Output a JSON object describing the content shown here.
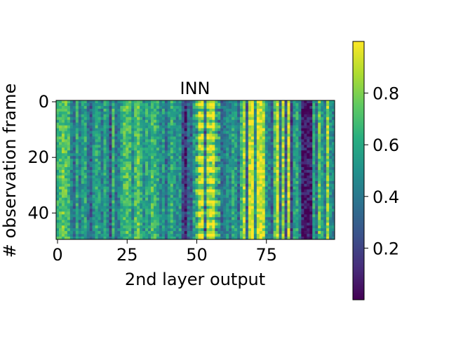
{
  "chart_data": {
    "type": "heatmap",
    "title": "INN",
    "xlabel": "2nd layer output",
    "ylabel": "# observation frame",
    "x_ticks": [
      0,
      25,
      50,
      75
    ],
    "y_ticks": [
      0,
      20,
      40
    ],
    "n_cols": 100,
    "n_rows": 50,
    "value_range": [
      0.0,
      1.0
    ],
    "colorbar": {
      "ticks": [
        0.2,
        0.4,
        0.6,
        0.8
      ],
      "tick_labels": [
        "0.2",
        "0.4",
        "0.6",
        "0.8"
      ]
    },
    "colormap": "viridis",
    "column_means": [
      0.62,
      0.7,
      0.76,
      0.72,
      0.66,
      0.45,
      0.35,
      0.6,
      0.4,
      0.55,
      0.6,
      0.38,
      0.3,
      0.5,
      0.62,
      0.55,
      0.42,
      0.6,
      0.5,
      0.25,
      0.65,
      0.35,
      0.45,
      0.6,
      0.7,
      0.72,
      0.66,
      0.5,
      0.7,
      0.75,
      0.6,
      0.5,
      0.62,
      0.55,
      0.7,
      0.66,
      0.6,
      0.45,
      0.55,
      0.35,
      0.5,
      0.65,
      0.52,
      0.48,
      0.55,
      0.22,
      0.12,
      0.35,
      0.3,
      0.55,
      0.62,
      0.88,
      0.92,
      0.4,
      0.85,
      0.9,
      0.92,
      0.6,
      0.55,
      0.35,
      0.4,
      0.5,
      0.45,
      0.6,
      0.55,
      0.35,
      0.65,
      0.88,
      0.3,
      0.92,
      0.95,
      0.5,
      0.96,
      0.94,
      0.88,
      0.5,
      0.45,
      0.3,
      0.7,
      0.92,
      0.35,
      0.85,
      0.3,
      0.9,
      0.2,
      0.55,
      0.6,
      0.4,
      0.08,
      0.05,
      0.06,
      0.05,
      0.6,
      0.35,
      0.75,
      0.55,
      0.4,
      0.85,
      0.5,
      0.45
    ]
  }
}
